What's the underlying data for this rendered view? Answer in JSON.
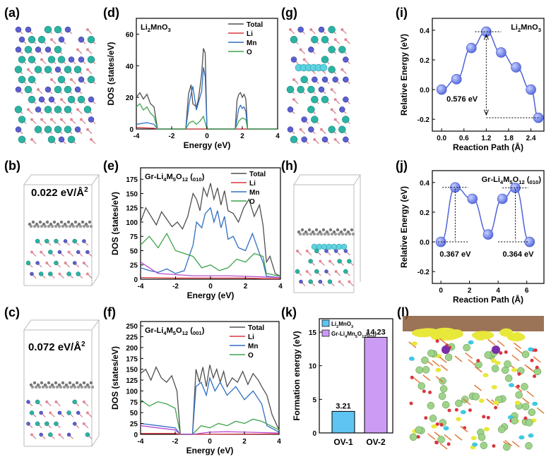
{
  "panel_labels": {
    "a": "(a)",
    "b": "(b)",
    "c": "(c)",
    "d": "(d)",
    "e": "(e)",
    "f": "(f)",
    "g": "(g)",
    "h": "(h)",
    "i": "(i)",
    "j": "(j)",
    "k": "(k)",
    "l": "(l)"
  },
  "structure_annotations": {
    "b_adsorption": "0.022 eV/Å",
    "c_adsorption": "0.072 eV/Å",
    "sup2": "2"
  },
  "colors": {
    "total": "#505050",
    "li": "#d9363e",
    "mn": "#2f6fc4",
    "o": "#3fa34d",
    "o_purple": "#b64bd0",
    "sphere": "#5b6fe0",
    "bar1": "#5fc4f2",
    "bar2": "#cc9cf5"
  },
  "chart_data": [
    {
      "id": "d",
      "type": "line",
      "title": "Li2MnO3",
      "xlabel": "Energy (eV)",
      "ylabel": "DOS (states/eV)",
      "xlim": [
        -4,
        4
      ],
      "ylim": [
        0,
        70
      ],
      "xticks": [
        "-4",
        "-2",
        "0",
        "2",
        "4"
      ],
      "yticks": [
        "0",
        "20",
        "40",
        "60"
      ],
      "legend": [
        "Total",
        "Li",
        "Mn",
        "O"
      ],
      "series": [
        {
          "name": "Total",
          "x": [
            -4,
            -3.8,
            -3.6,
            -3.4,
            -3.2,
            -3.0,
            -2.8,
            -1.2,
            -1.05,
            -0.9,
            -0.8,
            -0.7,
            -0.6,
            -0.5,
            -0.4,
            -0.3,
            -0.2,
            -0.1,
            0.0,
            1.6,
            1.7,
            1.8,
            1.9,
            2.0,
            2.1,
            2.2,
            2.3,
            4
          ],
          "y": [
            20,
            23,
            19,
            22,
            16,
            14,
            0,
            0,
            22,
            28,
            16,
            15,
            14,
            18,
            26,
            35,
            51,
            48,
            0,
            0,
            18,
            22,
            23,
            20,
            22,
            19,
            0,
            0
          ]
        },
        {
          "name": "Li",
          "x": [
            -4,
            -3,
            -2.8,
            4
          ],
          "y": [
            1,
            0.5,
            0,
            0
          ]
        },
        {
          "name": "Mn",
          "x": [
            -4,
            -3.4,
            -3.0,
            -2.8,
            -1.2,
            -1.0,
            -0.8,
            -0.6,
            -0.4,
            -0.3,
            -0.2,
            -0.1,
            0.0,
            1.6,
            1.8,
            1.9,
            2.0,
            2.1,
            2.2,
            2.3,
            4
          ],
          "y": [
            3,
            4,
            3,
            0,
            0,
            17,
            27,
            12,
            20,
            24,
            39,
            33,
            0,
            0,
            13,
            15,
            13,
            14,
            11,
            0,
            0
          ]
        },
        {
          "name": "O",
          "x": [
            -4,
            -3.8,
            -3.6,
            -3.4,
            -3.2,
            -3.0,
            -2.8,
            -1.2,
            -1.0,
            -0.8,
            -0.6,
            -0.4,
            -0.2,
            0.0,
            1.6,
            1.8,
            2.0,
            2.2,
            2.3,
            4
          ],
          "y": [
            14,
            16,
            12,
            14,
            10,
            8,
            0,
            0,
            4,
            5,
            3,
            5,
            8,
            0,
            0,
            5,
            7,
            6,
            0,
            0
          ]
        }
      ]
    },
    {
      "id": "e",
      "type": "line",
      "title": "Gr-Li4M5O12 (010)",
      "xlabel": "Energy (eV)",
      "ylabel": "DOS (states/eV)",
      "xlim": [
        -4,
        4
      ],
      "ylim": [
        0,
        195
      ],
      "xticks": [
        "-4",
        "-2",
        "0",
        "2",
        "4"
      ],
      "yticks": [
        "0",
        "25",
        "50",
        "75",
        "100",
        "125",
        "150",
        "175"
      ],
      "legend": [
        "Total",
        "Li",
        "Mn",
        "O"
      ],
      "series": [
        {
          "name": "Total",
          "x": [
            -4,
            -3.7,
            -3.4,
            -3.1,
            -2.8,
            -2.5,
            -2.2,
            -1.9,
            -1.6,
            -1.3,
            -1.0,
            -0.8,
            -0.6,
            -0.4,
            -0.2,
            0.0,
            0.2,
            0.4,
            0.6,
            0.8,
            1.0,
            1.3,
            1.6,
            1.9,
            2.2,
            2.5,
            2.8,
            3.0,
            3.2,
            3.4,
            3.7,
            4
          ],
          "y": [
            100,
            125,
            110,
            95,
            118,
            105,
            92,
            100,
            88,
            110,
            150,
            140,
            120,
            160,
            145,
            168,
            140,
            160,
            130,
            155,
            120,
            115,
            100,
            125,
            140,
            110,
            130,
            95,
            30,
            40,
            10,
            5
          ]
        },
        {
          "name": "Li",
          "x": [
            -4,
            -2,
            0,
            2,
            3,
            4
          ],
          "y": [
            3,
            2,
            2,
            2,
            1,
            1
          ]
        },
        {
          "name": "Mn",
          "x": [
            -4,
            -3.5,
            -3,
            -2.5,
            -2,
            -1.5,
            -1.0,
            -0.8,
            -0.5,
            -0.3,
            0.0,
            0.2,
            0.4,
            0.6,
            0.8,
            1.0,
            1.3,
            1.6,
            2.0,
            2.4,
            2.8,
            3.0,
            3.2,
            4
          ],
          "y": [
            20,
            15,
            12,
            18,
            10,
            15,
            60,
            100,
            90,
            115,
            125,
            100,
            120,
            90,
            110,
            70,
            75,
            55,
            50,
            80,
            45,
            30,
            5,
            3
          ]
        },
        {
          "name": "O",
          "x": [
            -4,
            -3.5,
            -3.0,
            -2.5,
            -2.0,
            -1.5,
            -1.0,
            -0.5,
            0.0,
            0.5,
            1.0,
            1.5,
            2.0,
            2.5,
            3.0,
            3.2,
            4
          ],
          "y": [
            60,
            75,
            55,
            80,
            50,
            45,
            40,
            20,
            25,
            15,
            20,
            35,
            30,
            45,
            40,
            10,
            5
          ]
        },
        {
          "name": "purple",
          "x": [
            -4,
            -3.5,
            -3,
            -2,
            -1,
            0,
            1,
            2,
            3,
            4
          ],
          "y": [
            30,
            20,
            10,
            8,
            6,
            6,
            6,
            5,
            4,
            3
          ]
        }
      ]
    },
    {
      "id": "f",
      "type": "line",
      "title": "Gr-Li4M5O12 (001)",
      "xlabel": "Energy (eV)",
      "ylabel": "DOS (states/eV)",
      "xlim": [
        -4,
        4
      ],
      "ylim": [
        0,
        260
      ],
      "xticks": [
        "-4",
        "-2",
        "0",
        "2",
        "4"
      ],
      "yticks": [
        "0",
        "25",
        "50",
        "75",
        "100",
        "125",
        "150",
        "175",
        "200",
        "225",
        "250"
      ],
      "legend": [
        "Total",
        "Li",
        "Mn",
        "O"
      ],
      "series": [
        {
          "name": "Total",
          "x": [
            -4,
            -3.7,
            -3.4,
            -3.1,
            -2.8,
            -2.5,
            -2.2,
            -1.9,
            -1.7,
            -1.0,
            -0.8,
            -0.6,
            -0.4,
            -0.2,
            0.0,
            0.2,
            0.4,
            0.6,
            0.8,
            1.0,
            1.3,
            1.6,
            1.9,
            2.2,
            2.5,
            2.8,
            3.0,
            3.3,
            3.6,
            4
          ],
          "y": [
            140,
            150,
            125,
            155,
            130,
            120,
            135,
            100,
            0,
            0,
            150,
            120,
            155,
            110,
            160,
            130,
            150,
            120,
            145,
            110,
            130,
            120,
            145,
            115,
            140,
            125,
            110,
            90,
            45,
            10
          ]
        },
        {
          "name": "Li",
          "x": [
            -4,
            -2,
            -1.7,
            -1,
            4
          ],
          "y": [
            2,
            2,
            0,
            0,
            1
          ]
        },
        {
          "name": "Mn",
          "x": [
            -4,
            -3,
            -2,
            -1.7,
            -1.0,
            -0.8,
            -0.5,
            -0.2,
            0.0,
            0.3,
            0.6,
            1.0,
            1.5,
            2.0,
            2.5,
            3.0,
            3.3,
            4
          ],
          "y": [
            25,
            20,
            15,
            0,
            0,
            110,
            120,
            90,
            130,
            100,
            120,
            90,
            110,
            80,
            100,
            70,
            20,
            5
          ]
        },
        {
          "name": "O",
          "x": [
            -4,
            -3.5,
            -3.0,
            -2.5,
            -2.0,
            -1.7,
            -1.0,
            -0.5,
            0.0,
            0.5,
            1.0,
            1.5,
            2.0,
            2.5,
            3.0,
            3.5,
            4
          ],
          "y": [
            80,
            65,
            75,
            70,
            60,
            0,
            0,
            20,
            15,
            25,
            20,
            30,
            25,
            35,
            30,
            20,
            10
          ]
        },
        {
          "name": "purple",
          "x": [
            -4,
            -3,
            -2,
            -1.7,
            -1,
            0,
            1,
            2,
            3,
            4
          ],
          "y": [
            20,
            15,
            10,
            0,
            0,
            5,
            6,
            5,
            4,
            3
          ]
        }
      ]
    },
    {
      "id": "i",
      "type": "line",
      "title": "Li2MnO3",
      "xlabel": "Reaction Path (Å)",
      "ylabel": "Relative Energy (eV)",
      "xlim": [
        -0.25,
        2.75
      ],
      "ylim": [
        -0.28,
        0.48
      ],
      "xticks": [
        "0.0",
        "0.6",
        "1.2",
        "1.8",
        "2.4"
      ],
      "yticks": [
        "-0.2",
        "0.0",
        "0.2",
        "0.4"
      ],
      "x": [
        0.0,
        0.4,
        0.8,
        1.2,
        1.6,
        2.0,
        2.4,
        2.6
      ],
      "y": [
        0.0,
        0.07,
        0.28,
        0.39,
        0.25,
        0.15,
        0.0,
        -0.19
      ],
      "annotation": "0.576 eV"
    },
    {
      "id": "j",
      "type": "line",
      "title": "Gr-Li4M5O12 (010)",
      "xlabel": "Reaction Path (Å)",
      "ylabel": "Relative Energy (eV)",
      "xlim": [
        -0.6,
        7.2
      ],
      "ylim": [
        -0.28,
        0.48
      ],
      "xticks": [
        "0",
        "2",
        "4",
        "6"
      ],
      "yticks": [
        "-0.2",
        "0.0",
        "0.2",
        "0.4"
      ],
      "x": [
        0.0,
        1.0,
        2.2,
        3.3,
        4.3,
        5.2,
        6.2
      ],
      "y": [
        0.0,
        0.367,
        0.29,
        0.05,
        0.29,
        0.364,
        0.0
      ],
      "annotations": [
        "0.367 eV",
        "0.364 eV"
      ]
    },
    {
      "id": "k",
      "type": "bar",
      "ylabel": "Formation energy (eV)",
      "categories": [
        "OV-1",
        "OV-2"
      ],
      "values": [
        3.21,
        14.23
      ],
      "value_labels": [
        "3.21",
        "14.23"
      ],
      "legend": [
        "Li2MnO3",
        "Gr-Li4Mn5O12(010)"
      ],
      "ylim": [
        0,
        17
      ],
      "yticks": [
        "0",
        "5",
        "10",
        "15"
      ]
    }
  ]
}
